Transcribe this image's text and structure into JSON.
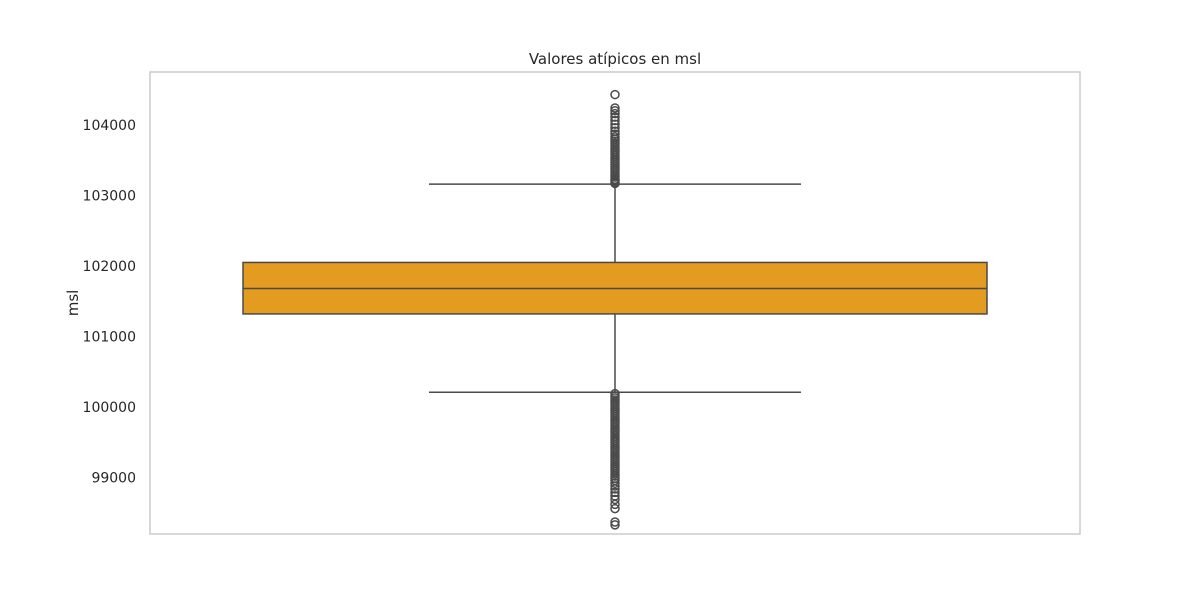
{
  "chart_data": {
    "type": "box",
    "title": "Valores atípicos en msl",
    "xlabel": "",
    "ylabel": "msl",
    "ylim": [
      98200,
      104750
    ],
    "yticks": [
      99000,
      100000,
      101000,
      102000,
      103000,
      104000
    ],
    "grid": false,
    "box": {
      "q1": 101320,
      "median": 101680,
      "q3": 102050,
      "whisker_low": 100210,
      "whisker_high": 103160,
      "fill_color": "#E39B20",
      "edge_color": "#4a4a4a"
    },
    "outliers_high": [
      103170,
      103190,
      103210,
      103230,
      103260,
      103290,
      103320,
      103350,
      103380,
      103410,
      103440,
      103470,
      103500,
      103530,
      103560,
      103590,
      103620,
      103650,
      103680,
      103710,
      103740,
      103770,
      103800,
      103830,
      103870,
      103910,
      103960,
      104010,
      104060,
      104110,
      104160,
      104200,
      104240,
      104430
    ],
    "outliers_low": [
      100190,
      100160,
      100130,
      100100,
      100070,
      100040,
      100010,
      99980,
      99950,
      99920,
      99890,
      99860,
      99830,
      99800,
      99770,
      99740,
      99710,
      99680,
      99650,
      99620,
      99590,
      99560,
      99530,
      99500,
      99470,
      99440,
      99410,
      99380,
      99350,
      99320,
      99290,
      99260,
      99230,
      99200,
      99170,
      99140,
      99110,
      99080,
      99050,
      99020,
      98990,
      98960,
      98920,
      98880,
      98840,
      98790,
      98740,
      98690,
      98620,
      98560,
      98370,
      98330
    ]
  }
}
